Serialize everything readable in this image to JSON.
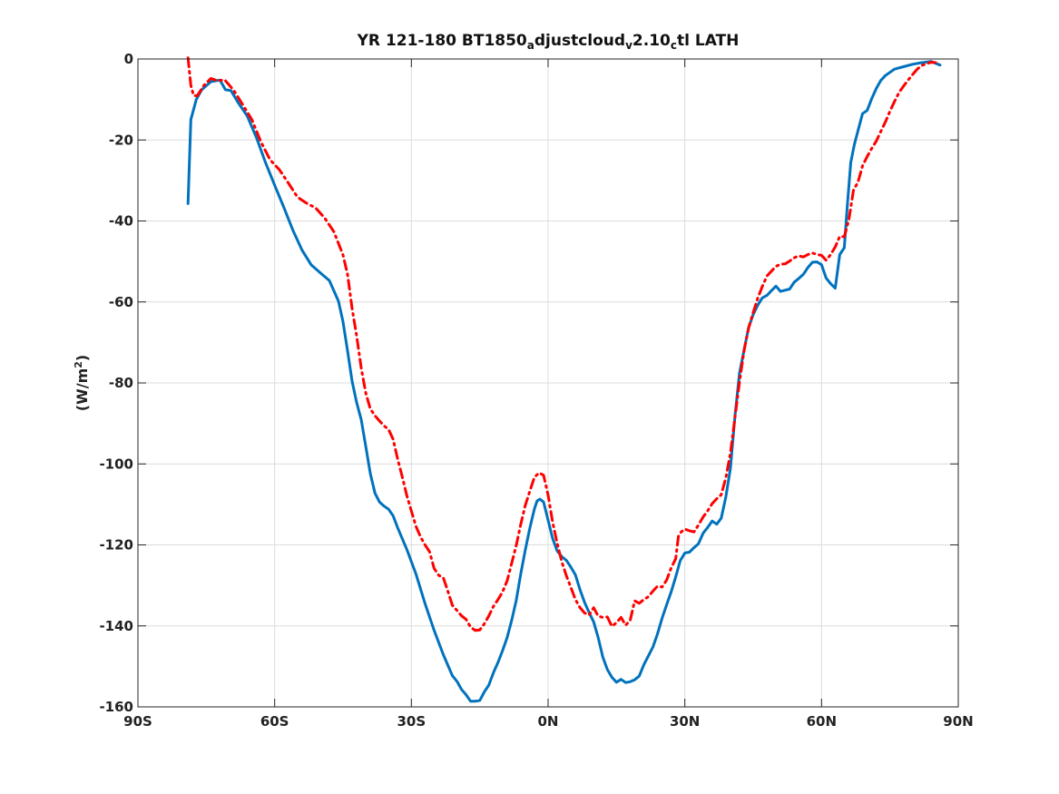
{
  "chart_data": {
    "type": "line",
    "title": {
      "parts": [
        {
          "text": "YR 121-180 BT1850",
          "sub": false
        },
        {
          "text": "a",
          "sub": true
        },
        {
          "text": "djustcloud",
          "sub": false
        },
        {
          "text": "v",
          "sub": true
        },
        {
          "text": "2.10",
          "sub": false
        },
        {
          "text": "c",
          "sub": true
        },
        {
          "text": "tl LATH",
          "sub": false
        }
      ]
    },
    "ylabel": {
      "base": "(W/m",
      "sup": "2",
      "close": ")"
    },
    "xlabel": "",
    "xlim": [
      -90,
      90
    ],
    "ylim": [
      -160,
      0
    ],
    "grid": true,
    "x_ticks": [
      {
        "value": -90,
        "label": "90S"
      },
      {
        "value": -60,
        "label": "60S"
      },
      {
        "value": -30,
        "label": "30S"
      },
      {
        "value": 0,
        "label": "0N"
      },
      {
        "value": 30,
        "label": "30N"
      },
      {
        "value": 60,
        "label": "60N"
      },
      {
        "value": 90,
        "label": "90N"
      }
    ],
    "y_ticks": [
      {
        "value": 0,
        "label": "0"
      },
      {
        "value": -20,
        "label": "-20"
      },
      {
        "value": -40,
        "label": "-40"
      },
      {
        "value": -60,
        "label": "-60"
      },
      {
        "value": -80,
        "label": "-80"
      },
      {
        "value": -100,
        "label": "-100"
      },
      {
        "value": -120,
        "label": "-120"
      },
      {
        "value": -140,
        "label": "-140"
      },
      {
        "value": -160,
        "label": "-160"
      }
    ],
    "series": [
      {
        "color": "#0072BD",
        "style": "solid",
        "points": [
          [
            -79,
            -35.7
          ],
          [
            -78.4,
            -15
          ],
          [
            -77.2,
            -10
          ],
          [
            -76,
            -7.6
          ],
          [
            -74,
            -5.6
          ],
          [
            -72,
            -5.2
          ],
          [
            -70.8,
            -7.6
          ],
          [
            -69.6,
            -7.8
          ],
          [
            -68,
            -10.8
          ],
          [
            -66,
            -14.1
          ],
          [
            -64,
            -19.4
          ],
          [
            -62,
            -25.6
          ],
          [
            -60,
            -31.2
          ],
          [
            -58,
            -36.6
          ],
          [
            -56,
            -42.3
          ],
          [
            -54,
            -47.2
          ],
          [
            -52,
            -50.8
          ],
          [
            -50,
            -52.8
          ],
          [
            -48,
            -54.7
          ],
          [
            -46,
            -59.8
          ],
          [
            -45,
            -64.9
          ],
          [
            -44,
            -72.1
          ],
          [
            -43,
            -79.6
          ],
          [
            -42,
            -84.9
          ],
          [
            -41,
            -89.1
          ],
          [
            -40,
            -95.7
          ],
          [
            -39,
            -102.4
          ],
          [
            -38,
            -107.2
          ],
          [
            -37,
            -109.4
          ],
          [
            -36,
            -110.4
          ],
          [
            -35,
            -111.2
          ],
          [
            -34,
            -112.8
          ],
          [
            -33,
            -115.8
          ],
          [
            -31,
            -121.1
          ],
          [
            -29,
            -127.2
          ],
          [
            -27,
            -134.5
          ],
          [
            -25,
            -141.1
          ],
          [
            -23,
            -147.1
          ],
          [
            -21,
            -152.3
          ],
          [
            -20,
            -153.7
          ],
          [
            -19,
            -155.7
          ],
          [
            -18,
            -157
          ],
          [
            -17,
            -158.6
          ],
          [
            -16,
            -158.6
          ],
          [
            -15,
            -158.4
          ],
          [
            -14,
            -156.3
          ],
          [
            -13,
            -154.6
          ],
          [
            -12,
            -151.6
          ],
          [
            -11,
            -149
          ],
          [
            -10,
            -146.1
          ],
          [
            -9,
            -142.9
          ],
          [
            -8,
            -138.7
          ],
          [
            -7,
            -133.8
          ],
          [
            -6,
            -127.1
          ],
          [
            -5,
            -121.2
          ],
          [
            -4,
            -115.8
          ],
          [
            -3,
            -111.1
          ],
          [
            -2.4,
            -109.1
          ],
          [
            -1.8,
            -108.7
          ],
          [
            -1,
            -109.4
          ],
          [
            0,
            -113.9
          ],
          [
            1,
            -118.4
          ],
          [
            2,
            -121.5
          ],
          [
            3,
            -122.9
          ],
          [
            4,
            -123.8
          ],
          [
            5,
            -125.5
          ],
          [
            6,
            -127.4
          ],
          [
            7,
            -131.1
          ],
          [
            8,
            -134.2
          ],
          [
            9,
            -136.7
          ],
          [
            10,
            -139
          ],
          [
            11,
            -142.9
          ],
          [
            12,
            -147.7
          ],
          [
            13,
            -150.8
          ],
          [
            14,
            -152.7
          ],
          [
            15,
            -153.9
          ],
          [
            16,
            -153.2
          ],
          [
            17,
            -154
          ],
          [
            18,
            -153.8
          ],
          [
            19,
            -153.3
          ],
          [
            20,
            -152.4
          ],
          [
            21,
            -149.6
          ],
          [
            22,
            -147.4
          ],
          [
            23,
            -145.2
          ],
          [
            24,
            -142
          ],
          [
            25,
            -138.1
          ],
          [
            26,
            -134.8
          ],
          [
            27,
            -131.6
          ],
          [
            28,
            -127.9
          ],
          [
            29,
            -123.9
          ],
          [
            30,
            -122
          ],
          [
            31,
            -121.8
          ],
          [
            32,
            -120.7
          ],
          [
            33,
            -119.7
          ],
          [
            34,
            -117.1
          ],
          [
            35,
            -115.7
          ],
          [
            36,
            -114.1
          ],
          [
            37,
            -114.9
          ],
          [
            38,
            -113.4
          ],
          [
            39,
            -108.1
          ],
          [
            40,
            -101.1
          ],
          [
            41,
            -88.2
          ],
          [
            42,
            -77.6
          ],
          [
            43,
            -71.8
          ],
          [
            44,
            -66.3
          ],
          [
            45,
            -63.1
          ],
          [
            46,
            -60.8
          ],
          [
            47,
            -59
          ],
          [
            48,
            -58.4
          ],
          [
            49,
            -57.2
          ],
          [
            50,
            -56.1
          ],
          [
            51,
            -57.4
          ],
          [
            52,
            -57.1
          ],
          [
            53,
            -56.8
          ],
          [
            54,
            -55.1
          ],
          [
            55,
            -54.2
          ],
          [
            56,
            -53.2
          ],
          [
            57,
            -51.5
          ],
          [
            58,
            -50.2
          ],
          [
            59,
            -50.1
          ],
          [
            60,
            -50.8
          ],
          [
            61,
            -54.1
          ],
          [
            62,
            -55.5
          ],
          [
            63,
            -56.6
          ],
          [
            64,
            -48.3
          ],
          [
            65,
            -46.6
          ],
          [
            65.6,
            -36.9
          ],
          [
            66.4,
            -25.6
          ],
          [
            67.2,
            -21.1
          ],
          [
            68,
            -17.7
          ],
          [
            69,
            -13.5
          ],
          [
            70,
            -12.7
          ],
          [
            71,
            -9.8
          ],
          [
            72,
            -7.3
          ],
          [
            73,
            -5.3
          ],
          [
            74,
            -4.1
          ],
          [
            76,
            -2.5
          ],
          [
            78,
            -1.9
          ],
          [
            80,
            -1.3
          ],
          [
            82,
            -0.9
          ],
          [
            84,
            -0.6
          ],
          [
            86,
            -1.5
          ]
        ]
      },
      {
        "color": "#FF0000",
        "style": "dash-dot",
        "points": [
          [
            -79,
            0.3
          ],
          [
            -78.4,
            -6.5
          ],
          [
            -77.8,
            -9
          ],
          [
            -77,
            -9.1
          ],
          [
            -75.5,
            -6.5
          ],
          [
            -74,
            -4.8
          ],
          [
            -72.5,
            -5.4
          ],
          [
            -71,
            -5.1
          ],
          [
            -69,
            -7.7
          ],
          [
            -67,
            -11.3
          ],
          [
            -65,
            -15
          ],
          [
            -63,
            -20.5
          ],
          [
            -61,
            -24.9
          ],
          [
            -59,
            -27.3
          ],
          [
            -57,
            -30.6
          ],
          [
            -55,
            -34.1
          ],
          [
            -53,
            -35.6
          ],
          [
            -51,
            -36.8
          ],
          [
            -49,
            -39.3
          ],
          [
            -47,
            -42.7
          ],
          [
            -45,
            -48.4
          ],
          [
            -44,
            -53.2
          ],
          [
            -43,
            -61.6
          ],
          [
            -42,
            -68.5
          ],
          [
            -41,
            -76.4
          ],
          [
            -40,
            -82.5
          ],
          [
            -39,
            -86.4
          ],
          [
            -38,
            -88.1
          ],
          [
            -37,
            -89.4
          ],
          [
            -36,
            -90.6
          ],
          [
            -35,
            -91.5
          ],
          [
            -34,
            -93.9
          ],
          [
            -33,
            -98.9
          ],
          [
            -32,
            -103.2
          ],
          [
            -31,
            -107.8
          ],
          [
            -30,
            -111.6
          ],
          [
            -29,
            -115.4
          ],
          [
            -28,
            -118
          ],
          [
            -27,
            -120
          ],
          [
            -26,
            -121.7
          ],
          [
            -25,
            -125.8
          ],
          [
            -24,
            -127.5
          ],
          [
            -23,
            -128.1
          ],
          [
            -22,
            -131.4
          ],
          [
            -21,
            -134.9
          ],
          [
            -20,
            -136.2
          ],
          [
            -19,
            -137.5
          ],
          [
            -18,
            -138.4
          ],
          [
            -17,
            -140.3
          ],
          [
            -16,
            -141.1
          ],
          [
            -15,
            -141
          ],
          [
            -14,
            -139.5
          ],
          [
            -13,
            -137.5
          ],
          [
            -12,
            -135.2
          ],
          [
            -11,
            -133.5
          ],
          [
            -10,
            -131.6
          ],
          [
            -9,
            -128.9
          ],
          [
            -8,
            -124.6
          ],
          [
            -7,
            -120.2
          ],
          [
            -6,
            -114.9
          ],
          [
            -5,
            -110.2
          ],
          [
            -4,
            -106.7
          ],
          [
            -3,
            -103.3
          ],
          [
            -2,
            -102.2
          ],
          [
            -1,
            -102.8
          ],
          [
            0,
            -107.7
          ],
          [
            1,
            -114.4
          ],
          [
            2,
            -119.6
          ],
          [
            3,
            -124.2
          ],
          [
            4,
            -127.6
          ],
          [
            5,
            -130.5
          ],
          [
            6,
            -133.5
          ],
          [
            7,
            -135.5
          ],
          [
            8,
            -136.8
          ],
          [
            9,
            -137.3
          ],
          [
            10,
            -135.5
          ],
          [
            11,
            -137.6
          ],
          [
            12,
            -137.9
          ],
          [
            13,
            -137.8
          ],
          [
            14,
            -140.1
          ],
          [
            15,
            -139.2
          ],
          [
            16,
            -137.9
          ],
          [
            17,
            -139.8
          ],
          [
            18,
            -138.7
          ],
          [
            19,
            -133.8
          ],
          [
            20,
            -134.4
          ],
          [
            21,
            -133.5
          ],
          [
            22,
            -132.8
          ],
          [
            23,
            -131.4
          ],
          [
            24,
            -130.2
          ],
          [
            25,
            -130.4
          ],
          [
            26,
            -128.7
          ],
          [
            27,
            -125.7
          ],
          [
            28,
            -123.4
          ],
          [
            28.6,
            -117.9
          ],
          [
            29.2,
            -116.8
          ],
          [
            30,
            -116.1
          ],
          [
            31,
            -116.5
          ],
          [
            32,
            -116.8
          ],
          [
            33,
            -115.1
          ],
          [
            34,
            -113.1
          ],
          [
            35,
            -111.6
          ],
          [
            36,
            -109.8
          ],
          [
            37,
            -108.6
          ],
          [
            38,
            -107.6
          ],
          [
            39,
            -103.4
          ],
          [
            40,
            -97.4
          ],
          [
            41,
            -88.6
          ],
          [
            42,
            -79.8
          ],
          [
            43,
            -71.9
          ],
          [
            44,
            -66.4
          ],
          [
            45,
            -62.6
          ],
          [
            46,
            -59.1
          ],
          [
            47,
            -56.2
          ],
          [
            48,
            -53.6
          ],
          [
            49,
            -52.4
          ],
          [
            50,
            -51.2
          ],
          [
            51,
            -50.7
          ],
          [
            52,
            -50.6
          ],
          [
            53,
            -49.9
          ],
          [
            54,
            -49.1
          ],
          [
            55,
            -48.6
          ],
          [
            56,
            -48.9
          ],
          [
            57,
            -48.3
          ],
          [
            58,
            -47.9
          ],
          [
            59,
            -48.3
          ],
          [
            60,
            -48.5
          ],
          [
            61,
            -49.7
          ],
          [
            62,
            -48.3
          ],
          [
            63,
            -46.4
          ],
          [
            64,
            -43.8
          ],
          [
            65,
            -43.9
          ],
          [
            66,
            -39.6
          ],
          [
            67,
            -32.4
          ],
          [
            68,
            -30.4
          ],
          [
            69,
            -26.4
          ],
          [
            70,
            -24.1
          ],
          [
            71,
            -22.1
          ],
          [
            72,
            -20.3
          ],
          [
            73,
            -17.9
          ],
          [
            74,
            -15.6
          ],
          [
            75,
            -12.9
          ],
          [
            76,
            -10.5
          ],
          [
            77,
            -8.3
          ],
          [
            78,
            -6.7
          ],
          [
            79,
            -5.2
          ],
          [
            80,
            -3.8
          ],
          [
            81,
            -2.5
          ],
          [
            82,
            -1.6
          ],
          [
            83,
            -1.2
          ],
          [
            84,
            -0.8
          ],
          [
            85,
            -0.9
          ]
        ]
      }
    ]
  }
}
